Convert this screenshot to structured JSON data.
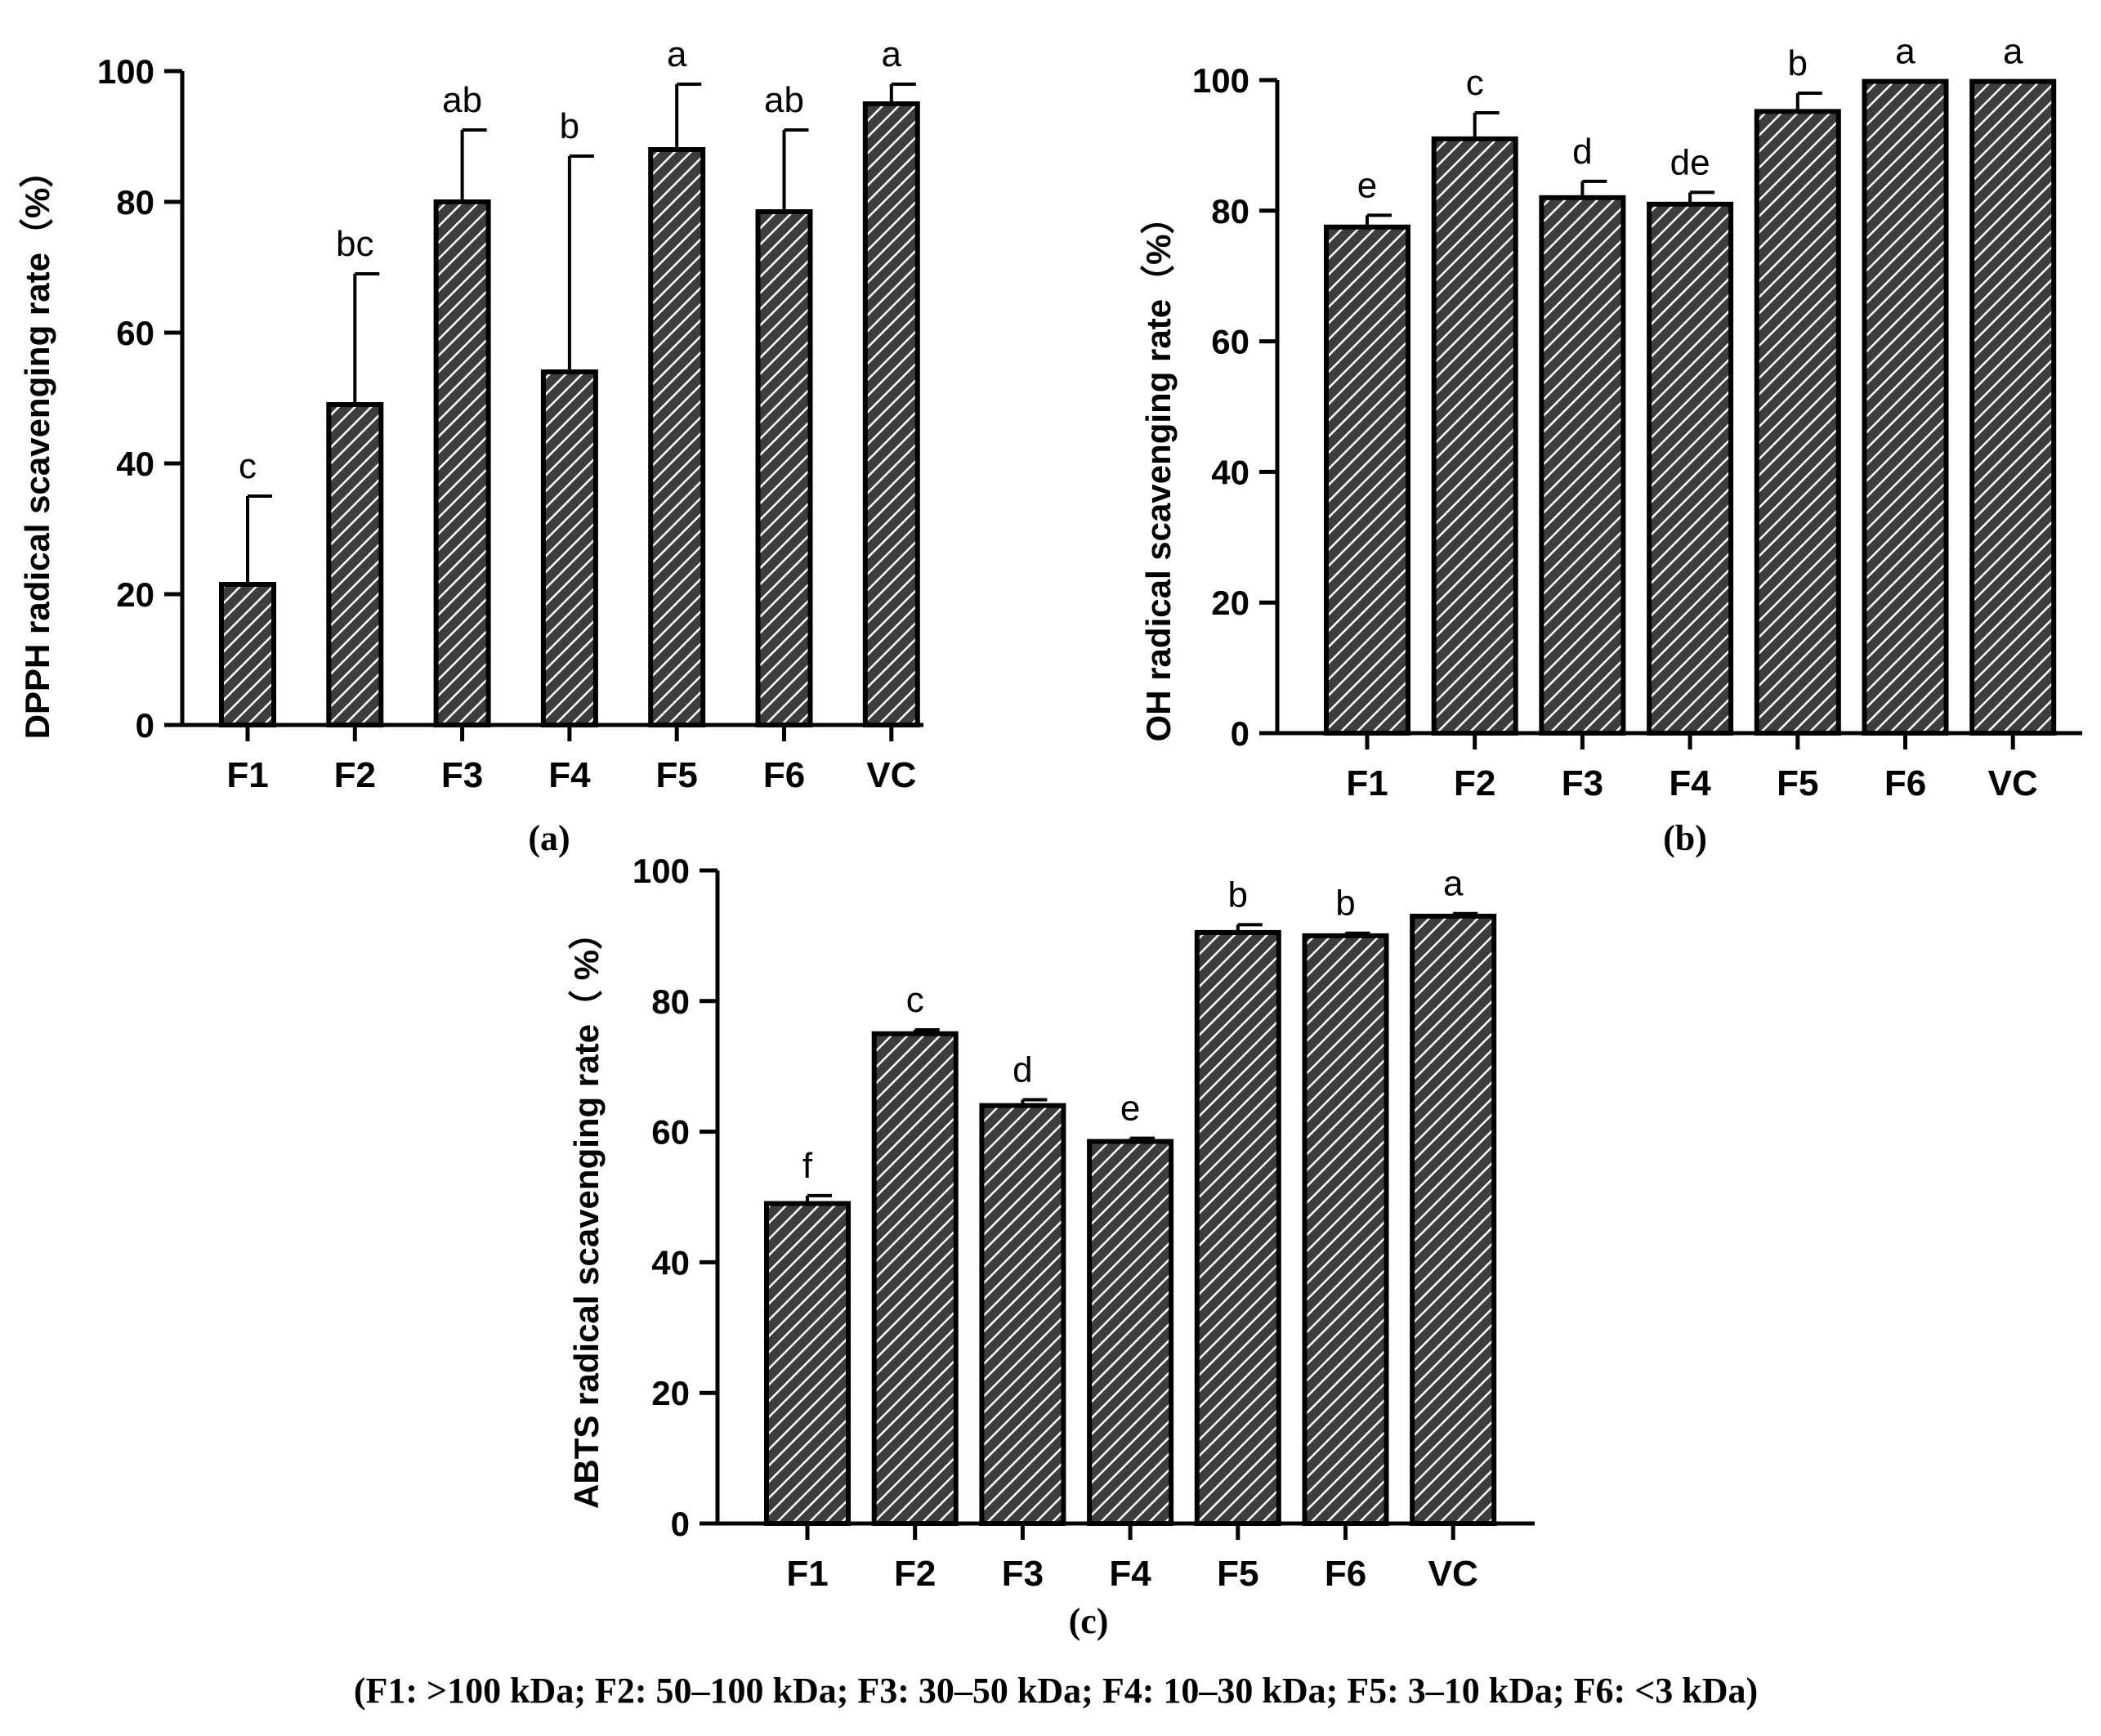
{
  "chart_data": [
    {
      "id": "a",
      "type": "bar",
      "panel_label": "(a)",
      "title": "",
      "xlabel": "",
      "ylabel": "DPPH radical scavenging rate（%）",
      "ylim": [
        0,
        100
      ],
      "yticks": [
        "0",
        "20",
        "40",
        "60",
        "80",
        "100"
      ],
      "categories": [
        "F1",
        "F2",
        "F3",
        "F4",
        "F5",
        "F6",
        "VC"
      ],
      "values": [
        21.5,
        49,
        80,
        54,
        88,
        78.5,
        95
      ],
      "errors": [
        13.5,
        20,
        11,
        33,
        10,
        12.5,
        3
      ],
      "significance": [
        "c",
        "bc",
        "ab",
        "b",
        "a",
        "ab",
        "a"
      ],
      "fill_pattern": "diagonal hatch",
      "grid": false
    },
    {
      "id": "b",
      "type": "bar",
      "panel_label": "(b)",
      "title": "",
      "xlabel": "",
      "ylabel": "OH radical scavenging rate（%）",
      "ylim": [
        0,
        100
      ],
      "yticks": [
        "0",
        "20",
        "40",
        "60",
        "80",
        "100"
      ],
      "categories": [
        "F1",
        "F2",
        "F3",
        "F4",
        "F5",
        "F6",
        "VC"
      ],
      "values": [
        77.5,
        91,
        82,
        81,
        95.2,
        99.8,
        99.8
      ],
      "errors": [
        1.8,
        4,
        2.5,
        1.8,
        2.8,
        0,
        0
      ],
      "significance": [
        "e",
        "c",
        "d",
        "de",
        "b",
        "a",
        "a"
      ],
      "fill_pattern": "diagonal hatch",
      "grid": false
    },
    {
      "id": "c",
      "type": "bar",
      "panel_label": "(c)",
      "title": "",
      "xlabel": "",
      "ylabel": "ABTS radical scavenging rate（ %）",
      "ylim": [
        0,
        100
      ],
      "yticks": [
        "0",
        "20",
        "40",
        "60",
        "80",
        "100"
      ],
      "categories": [
        "F1",
        "F2",
        "F3",
        "F4",
        "F5",
        "F6",
        "VC"
      ],
      "values": [
        49,
        75,
        64,
        58.5,
        90.5,
        90,
        93
      ],
      "errors": [
        1.2,
        0.6,
        0.9,
        0.5,
        1.2,
        0.4,
        0.4
      ],
      "significance": [
        "f",
        "c",
        "d",
        "e",
        "b",
        "b",
        "a"
      ],
      "fill_pattern": "diagonal hatch",
      "grid": false
    }
  ],
  "caption": "(F1: >100 kDa; F2: 50–100 kDa; F3: 30–50 kDa; F4: 10–30 kDa; F5: 3–10 kDa; F6: <3 kDa)",
  "colors": {
    "bar_fill_dark": "#3d3d3d",
    "bar_hatch": "#ffffff",
    "ink": "#000000",
    "background": "#ffffff"
  }
}
